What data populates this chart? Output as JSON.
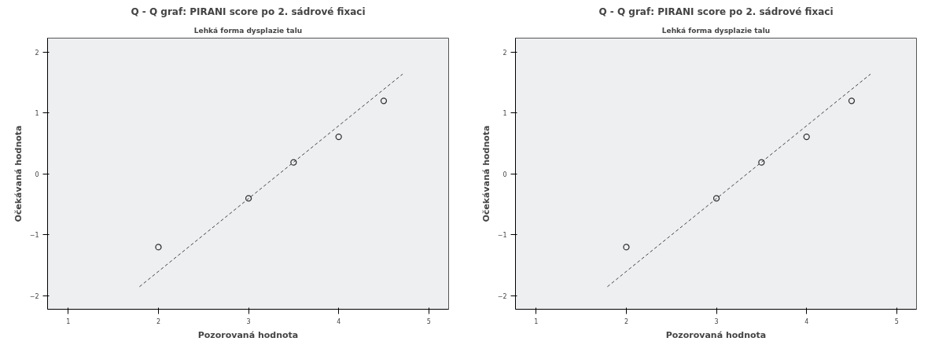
{
  "chart_data": [
    {
      "type": "scatter",
      "title": "Q - Q graf: PIRANI score po 2. sádrové fixaci",
      "subtitle": "Lehká forma dysplazie talu",
      "xlabel": "Pozorovaná hodnota",
      "ylabel": "Očekávaná hodnota",
      "xlim": [
        0.77,
        5.22
      ],
      "ylim": [
        -2.22,
        2.23
      ],
      "xticks": [
        1,
        2,
        3,
        4,
        5
      ],
      "yticks": [
        -2,
        -1,
        0,
        1,
        2
      ],
      "grid": false,
      "marker": "circle",
      "series": [
        {
          "type": "scatter",
          "color": "#333333",
          "x": [
            2,
            3,
            3.5,
            4,
            4.5
          ],
          "values": [
            -1.2,
            -0.4,
            0.19,
            0.61,
            1.2
          ]
        },
        {
          "type": "line",
          "color": "#444444",
          "line_style": "dashed",
          "marker": "none",
          "x": [
            1.79,
            4.71
          ],
          "values": [
            -1.85,
            1.64
          ]
        }
      ]
    },
    {
      "type": "scatter",
      "title": "Q - Q graf: PIRANI score po 2. sádrové fixaci",
      "subtitle": "Lehká forma dysplazie talu",
      "xlabel": "Pozorovaná hodnota",
      "ylabel": "Očekávaná hodnota",
      "xlim": [
        0.77,
        5.22
      ],
      "ylim": [
        -2.22,
        2.23
      ],
      "xticks": [
        1,
        2,
        3,
        4,
        5
      ],
      "yticks": [
        -2,
        -1,
        0,
        1,
        2
      ],
      "grid": false,
      "marker": "circle",
      "series": [
        {
          "type": "scatter",
          "color": "#333333",
          "x": [
            2,
            3,
            3.5,
            4,
            4.5
          ],
          "values": [
            -1.2,
            -0.4,
            0.19,
            0.61,
            1.2
          ]
        },
        {
          "type": "line",
          "color": "#444444",
          "line_style": "dashed",
          "marker": "none",
          "x": [
            1.79,
            4.71
          ],
          "values": [
            -1.85,
            1.64
          ]
        }
      ]
    }
  ]
}
